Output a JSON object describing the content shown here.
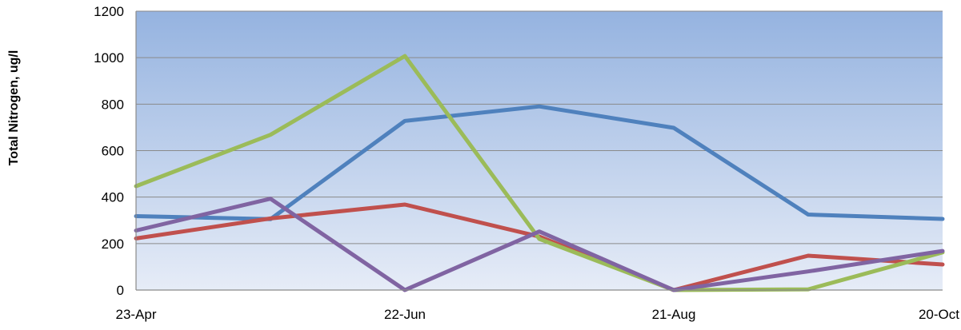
{
  "chart_data": {
    "type": "line",
    "ylabel": "Total Nitrogen, ug/l",
    "xlabel": "",
    "title": "",
    "ylim": [
      0,
      1200
    ],
    "yticks": [
      0,
      200,
      400,
      600,
      800,
      1000,
      1200
    ],
    "x_tick_labels": [
      "23-Apr",
      "22-Jun",
      "21-Aug",
      "20-Oct"
    ],
    "x_range": [
      "2024-04-23",
      "2024-10-20"
    ],
    "grid": true,
    "legend": "none",
    "series": [
      {
        "color": "#4f81bd",
        "points": [
          {
            "x": "2024-04-23",
            "y": 318
          },
          {
            "x": "2024-05-23",
            "y": 305
          },
          {
            "x": "2024-06-22",
            "y": 728
          },
          {
            "x": "2024-07-22",
            "y": 790
          },
          {
            "x": "2024-08-21",
            "y": 698
          },
          {
            "x": "2024-09-20",
            "y": 325
          },
          {
            "x": "2024-10-20",
            "y": 306
          }
        ]
      },
      {
        "color": "#c0504d",
        "points": [
          {
            "x": "2024-04-23",
            "y": 222
          },
          {
            "x": "2024-05-23",
            "y": 308
          },
          {
            "x": "2024-06-22",
            "y": 368
          },
          {
            "x": "2024-07-22",
            "y": 230
          },
          {
            "x": "2024-08-21",
            "y": 0
          },
          {
            "x": "2024-09-20",
            "y": 148
          },
          {
            "x": "2024-10-20",
            "y": 110
          }
        ]
      },
      {
        "color": "#9bbb59",
        "points": [
          {
            "x": "2024-04-23",
            "y": 447
          },
          {
            "x": "2024-05-23",
            "y": 668
          },
          {
            "x": "2024-06-22",
            "y": 1007
          },
          {
            "x": "2024-07-22",
            "y": 220
          },
          {
            "x": "2024-08-21",
            "y": 0
          },
          {
            "x": "2024-09-20",
            "y": 3
          },
          {
            "x": "2024-10-20",
            "y": 162
          }
        ]
      },
      {
        "color": "#8064a2",
        "points": [
          {
            "x": "2024-04-23",
            "y": 256
          },
          {
            "x": "2024-05-23",
            "y": 393
          },
          {
            "x": "2024-06-22",
            "y": 0
          },
          {
            "x": "2024-07-22",
            "y": 252
          },
          {
            "x": "2024-08-21",
            "y": 0
          },
          {
            "x": "2024-09-20",
            "y": 80
          },
          {
            "x": "2024-10-20",
            "y": 168
          }
        ]
      }
    ]
  }
}
